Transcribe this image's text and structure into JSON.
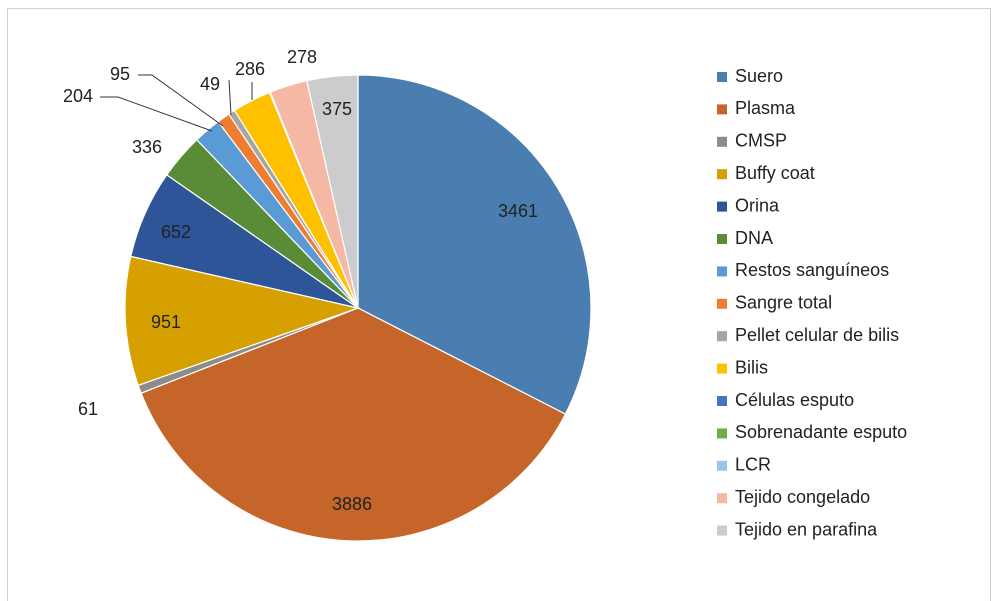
{
  "chart_data": {
    "type": "pie",
    "categories": [
      "Suero",
      "Plasma",
      "CMSP",
      "Buffy coat",
      "Orina",
      "DNA",
      "Restos sanguíneos",
      "Sangre total",
      "Pellet celular de bilis",
      "Bilis",
      "Células esputo",
      "Sobrenadante esputo",
      "LCR",
      "Tejido congelado",
      "Tejido en parafina"
    ],
    "values": [
      3461,
      3886,
      61,
      951,
      652,
      336,
      204,
      95,
      49,
      286,
      3,
      2,
      2,
      278,
      375
    ],
    "value_labels": [
      "3461",
      "3886",
      "61",
      "951",
      "652",
      "336",
      "204",
      "95",
      "49",
      "286",
      null,
      null,
      null,
      "278",
      "375"
    ],
    "colors": [
      "#4a7eb1",
      "#c5652a",
      "#8c8c8c",
      "#d5a000",
      "#2d5597",
      "#5a8b36",
      "#5b9bd5",
      "#ed7d31",
      "#a5a5a5",
      "#ffc000",
      "#4472c4",
      "#70ad47",
      "#9dc3e6",
      "#f4b8a4",
      "#cccccc"
    ],
    "legend": "right"
  }
}
